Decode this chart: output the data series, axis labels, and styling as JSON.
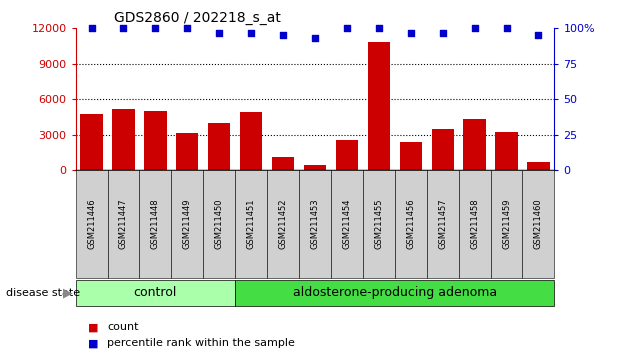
{
  "title": "GDS2860 / 202218_s_at",
  "samples": [
    "GSM211446",
    "GSM211447",
    "GSM211448",
    "GSM211449",
    "GSM211450",
    "GSM211451",
    "GSM211452",
    "GSM211453",
    "GSM211454",
    "GSM211455",
    "GSM211456",
    "GSM211457",
    "GSM211458",
    "GSM211459",
    "GSM211460"
  ],
  "counts": [
    4700,
    5200,
    5000,
    3100,
    4000,
    4900,
    1100,
    400,
    2500,
    10800,
    2400,
    3500,
    4300,
    3200,
    700
  ],
  "percentiles": [
    100,
    100,
    100,
    100,
    97,
    97,
    95,
    93,
    100,
    100,
    97,
    97,
    100,
    100,
    95
  ],
  "bar_color": "#cc0000",
  "dot_color": "#0000cc",
  "control_count": 5,
  "control_label": "control",
  "disease_label": "aldosterone-producing adenoma",
  "control_bg": "#aaffaa",
  "disease_bg": "#44dd44",
  "ylim_left": [
    0,
    12000
  ],
  "ylim_right": [
    0,
    100
  ],
  "yticks_left": [
    0,
    3000,
    6000,
    9000,
    12000
  ],
  "yticks_right": [
    0,
    25,
    50,
    75,
    100
  ],
  "grid_values": [
    3000,
    6000,
    9000
  ],
  "sample_box_color": "#d0d0d0"
}
